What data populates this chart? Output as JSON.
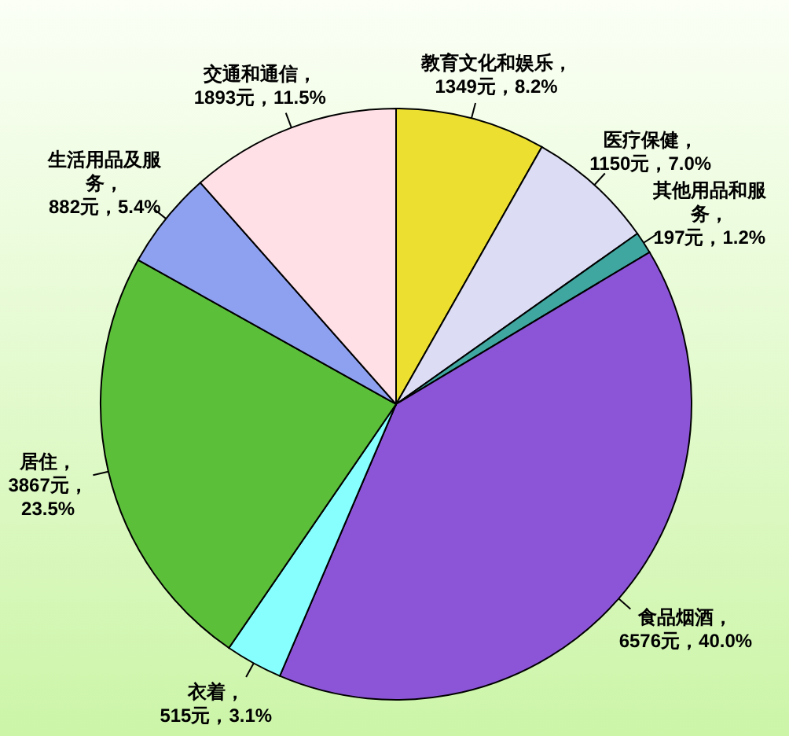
{
  "chart_data": {
    "type": "pie",
    "categories": [
      "教育文化和娱乐",
      "医疗保健",
      "其他用品和服务",
      "食品烟酒",
      "衣着",
      "居住",
      "生活用品及服务",
      "交通和通信"
    ],
    "values": [
      1349,
      1150,
      197,
      6576,
      515,
      3867,
      882,
      1893
    ],
    "colors": [
      "#ecdf30",
      "#dcdcf4",
      "#3fa7a0",
      "#8c55d8",
      "#88ffff",
      "#5cbf3a",
      "#8ea0f0",
      "#ffe0e6"
    ],
    "value_labels": [
      "，1349元，8.2%",
      "，1150元，7.0%",
      "，197元，1.2%",
      "，6576元，40.0%",
      "，515元，3.1%",
      "，3867元，23.5%",
      "，882元，5.4%",
      "，1893元，11.5%"
    ]
  }
}
